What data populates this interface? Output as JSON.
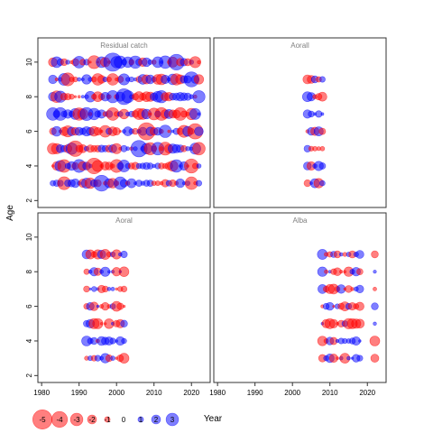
{
  "chart_data": {
    "type": "scatter",
    "xlabel": "Year",
    "ylabel": "Age",
    "xlim": [
      1979,
      2025
    ],
    "ylim": [
      1.6,
      11.4
    ],
    "x_ticks": [
      "1980",
      "1990",
      "2000",
      "2010",
      "2020"
    ],
    "y_ticks": [
      "2",
      "4",
      "6",
      "8",
      "10"
    ],
    "series_colors": {
      "positive": "#0000FF",
      "negative": "#FF0000"
    },
    "panels": [
      {
        "title": "Residual catch",
        "ages": [
          3,
          4,
          5,
          6,
          7,
          8,
          9,
          10
        ],
        "years": [
          1983,
          2022
        ]
      },
      {
        "title": "Aorall",
        "ages": [
          3,
          4,
          5,
          6,
          7,
          8,
          9
        ],
        "years": [
          2004,
          2008
        ]
      },
      {
        "title": "Aoral",
        "ages": [
          3,
          4,
          5,
          6,
          7,
          8,
          9
        ],
        "years": [
          1992,
          2002
        ]
      },
      {
        "title": "Alba",
        "ages": [
          3,
          4,
          5,
          6,
          7,
          8,
          9
        ],
        "years": [
          2008,
          2018
        ],
        "extra_year": 2022
      }
    ],
    "legend": [
      {
        "label": "-5",
        "value": -5
      },
      {
        "label": "-4",
        "value": -4
      },
      {
        "label": "-3",
        "value": -3
      },
      {
        "label": "-2",
        "value": -2
      },
      {
        "label": "-1",
        "value": -1
      },
      {
        "label": "0",
        "value": 0
      },
      {
        "label": "1",
        "value": 1
      },
      {
        "label": "2",
        "value": 2
      },
      {
        "label": "3",
        "value": 3
      }
    ]
  }
}
